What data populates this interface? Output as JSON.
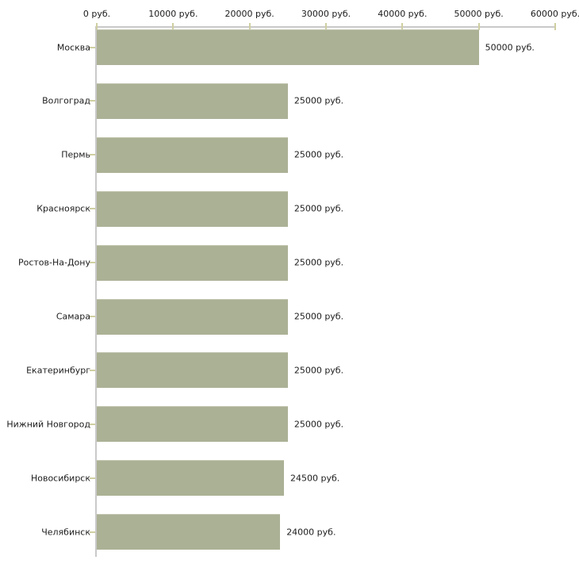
{
  "chart_data": {
    "type": "bar",
    "orientation": "horizontal",
    "title": "",
    "categories": [
      "Москва",
      "Волгоград",
      "Пермь",
      "Красноярск",
      "Ростов-На-Дону",
      "Самара",
      "Екатеринбург",
      "Нижний Новгород",
      "Новосибирск",
      "Челябинск"
    ],
    "values": [
      50000,
      25000,
      25000,
      25000,
      25000,
      25000,
      25000,
      25000,
      24500,
      24000
    ],
    "value_labels": [
      "50000 руб.",
      "25000 руб.",
      "25000 руб.",
      "25000 руб.",
      "25000 руб.",
      "25000 руб.",
      "25000 руб.",
      "25000 руб.",
      "24500 руб.",
      "24000 руб."
    ],
    "x_axis": {
      "position": "top",
      "range": [
        0,
        60000
      ],
      "tick_values": [
        0,
        10000,
        20000,
        30000,
        40000,
        50000,
        60000
      ],
      "tick_labels": [
        "0 руб.",
        "10000 руб.",
        "20000 руб.",
        "30000 руб.",
        "40000 руб.",
        "50000 руб.",
        "60000 руб."
      ]
    },
    "legend": null,
    "grid": false,
    "colors": {
      "bar": "#abb195",
      "bar_top_edge": "#c3c7b0",
      "axis_line": "#c9c9c9",
      "tick_mark": "#cfcfa2",
      "text": "#1c1c1c",
      "background": "#ffffff"
    }
  }
}
